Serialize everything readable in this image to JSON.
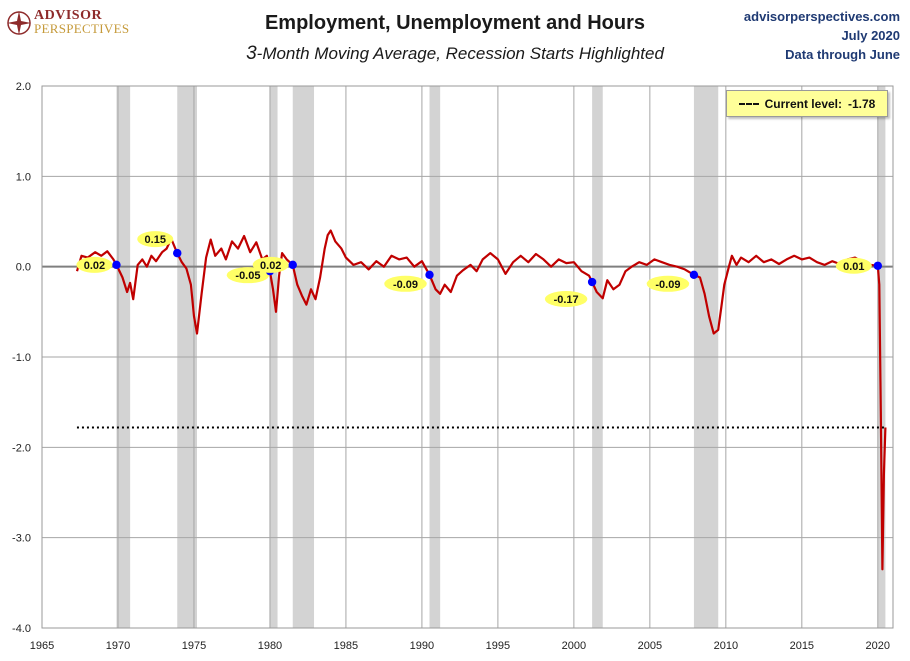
{
  "header": {
    "title": "Employment, Unemployment and Hours",
    "subtitle_lead": "3",
    "subtitle_rest": "-Month Moving Average, Recession Starts Highlighted",
    "source_site": "advisorperspectives.com",
    "source_date": "July 2020",
    "source_note": "Data through June",
    "logo_word1": "ADVISOR",
    "logo_word2": "PERSPECTIVES"
  },
  "legend": {
    "marker": "dashed-line",
    "label": "Current level:",
    "value": "-1.78"
  },
  "colors": {
    "series": "#c00000",
    "recession": "#d3d3d3",
    "marker": "#0000ff",
    "label_bg": "#ffff66",
    "grid": "#a6a6a6"
  },
  "chart_data": {
    "type": "line",
    "title": "Employment, Unemployment and Hours",
    "subtitle": "3-Month Moving Average, Recession Starts Highlighted",
    "xlim": [
      1965,
      2021
    ],
    "ylim": [
      -4.0,
      2.0
    ],
    "x_ticks": [
      1965,
      1970,
      1975,
      1980,
      1985,
      1990,
      1995,
      2000,
      2005,
      2010,
      2015,
      2020
    ],
    "y_ticks": [
      2.0,
      1.0,
      0.0,
      -1.0,
      -2.0,
      -3.0,
      -4.0
    ],
    "y_tick_labels": [
      "2.0",
      "1.0",
      "0.0",
      "-1.0",
      "-2.0",
      "-3.0",
      "-4.0"
    ],
    "grid": "vertical-and-horizontal",
    "legend_position": "top-right",
    "current_level": -1.78,
    "recessions": [
      [
        1969.9,
        1970.8
      ],
      [
        1973.9,
        1975.2
      ],
      [
        1980.0,
        1980.5
      ],
      [
        1981.5,
        1982.9
      ],
      [
        1990.5,
        1991.2
      ],
      [
        2001.2,
        2001.9
      ],
      [
        2007.9,
        2009.5
      ],
      [
        2020.0,
        2020.5
      ]
    ],
    "recession_start_values": [
      {
        "x": 1969.9,
        "y": 0.02,
        "label": "0.02"
      },
      {
        "x": 1973.9,
        "y": 0.15,
        "label": "0.15"
      },
      {
        "x": 1980.0,
        "y": -0.05,
        "label": "-0.05"
      },
      {
        "x": 1981.5,
        "y": 0.02,
        "label": "0.02"
      },
      {
        "x": 1990.5,
        "y": -0.09,
        "label": "-0.09"
      },
      {
        "x": 2001.2,
        "y": -0.17,
        "label": "-0.17"
      },
      {
        "x": 2007.9,
        "y": -0.09,
        "label": "-0.09"
      },
      {
        "x": 2020.0,
        "y": 0.01,
        "label": "0.01"
      }
    ],
    "series": [
      {
        "values": [
          [
            1967.3,
            -0.05
          ],
          [
            1967.6,
            0.12
          ],
          [
            1968.0,
            0.1
          ],
          [
            1968.5,
            0.16
          ],
          [
            1968.9,
            0.12
          ],
          [
            1969.3,
            0.17
          ],
          [
            1969.7,
            0.08
          ],
          [
            1969.9,
            0.02
          ],
          [
            1970.3,
            -0.12
          ],
          [
            1970.6,
            -0.28
          ],
          [
            1970.8,
            -0.18
          ],
          [
            1971.0,
            -0.36
          ],
          [
            1971.3,
            0.02
          ],
          [
            1971.6,
            0.08
          ],
          [
            1971.9,
            0.0
          ],
          [
            1972.2,
            0.12
          ],
          [
            1972.5,
            0.06
          ],
          [
            1972.9,
            0.16
          ],
          [
            1973.2,
            0.2
          ],
          [
            1973.5,
            0.31
          ],
          [
            1973.9,
            0.15
          ],
          [
            1974.2,
            0.05
          ],
          [
            1974.5,
            -0.02
          ],
          [
            1974.8,
            -0.2
          ],
          [
            1975.0,
            -0.55
          ],
          [
            1975.2,
            -0.74
          ],
          [
            1975.5,
            -0.3
          ],
          [
            1975.8,
            0.1
          ],
          [
            1976.1,
            0.3
          ],
          [
            1976.4,
            0.12
          ],
          [
            1976.8,
            0.2
          ],
          [
            1977.1,
            0.08
          ],
          [
            1977.5,
            0.28
          ],
          [
            1977.9,
            0.2
          ],
          [
            1978.3,
            0.34
          ],
          [
            1978.7,
            0.16
          ],
          [
            1979.1,
            0.27
          ],
          [
            1979.5,
            0.08
          ],
          [
            1979.8,
            0.12
          ],
          [
            1980.0,
            -0.05
          ],
          [
            1980.2,
            -0.25
          ],
          [
            1980.4,
            -0.5
          ],
          [
            1980.6,
            -0.1
          ],
          [
            1980.8,
            0.15
          ],
          [
            1981.1,
            0.08
          ],
          [
            1981.5,
            0.02
          ],
          [
            1981.8,
            -0.2
          ],
          [
            1982.1,
            -0.32
          ],
          [
            1982.4,
            -0.42
          ],
          [
            1982.7,
            -0.25
          ],
          [
            1983.0,
            -0.36
          ],
          [
            1983.3,
            -0.12
          ],
          [
            1983.6,
            0.2
          ],
          [
            1983.8,
            0.35
          ],
          [
            1984.0,
            0.4
          ],
          [
            1984.3,
            0.28
          ],
          [
            1984.7,
            0.2
          ],
          [
            1985.0,
            0.1
          ],
          [
            1985.5,
            0.02
          ],
          [
            1986.0,
            0.05
          ],
          [
            1986.5,
            -0.03
          ],
          [
            1987.0,
            0.06
          ],
          [
            1987.5,
            0.0
          ],
          [
            1988.0,
            0.12
          ],
          [
            1988.5,
            0.08
          ],
          [
            1989.0,
            0.1
          ],
          [
            1989.5,
            0.0
          ],
          [
            1990.0,
            0.06
          ],
          [
            1990.5,
            -0.09
          ],
          [
            1990.9,
            -0.25
          ],
          [
            1991.2,
            -0.3
          ],
          [
            1991.5,
            -0.2
          ],
          [
            1991.9,
            -0.28
          ],
          [
            1992.3,
            -0.1
          ],
          [
            1992.7,
            -0.04
          ],
          [
            1993.2,
            0.02
          ],
          [
            1993.6,
            -0.05
          ],
          [
            1994.0,
            0.08
          ],
          [
            1994.5,
            0.15
          ],
          [
            1995.0,
            0.08
          ],
          [
            1995.5,
            -0.08
          ],
          [
            1996.0,
            0.05
          ],
          [
            1996.5,
            0.12
          ],
          [
            1997.0,
            0.05
          ],
          [
            1997.5,
            0.14
          ],
          [
            1998.0,
            0.08
          ],
          [
            1998.5,
            0.0
          ],
          [
            1999.0,
            0.08
          ],
          [
            1999.5,
            0.04
          ],
          [
            2000.0,
            0.05
          ],
          [
            2000.5,
            -0.05
          ],
          [
            2001.0,
            -0.1
          ],
          [
            2001.2,
            -0.17
          ],
          [
            2001.5,
            -0.28
          ],
          [
            2001.9,
            -0.35
          ],
          [
            2002.2,
            -0.15
          ],
          [
            2002.6,
            -0.25
          ],
          [
            2003.0,
            -0.2
          ],
          [
            2003.4,
            -0.05
          ],
          [
            2003.8,
            0.0
          ],
          [
            2004.3,
            0.05
          ],
          [
            2004.8,
            0.02
          ],
          [
            2005.3,
            0.08
          ],
          [
            2005.8,
            0.05
          ],
          [
            2006.3,
            0.02
          ],
          [
            2006.8,
            0.0
          ],
          [
            2007.3,
            -0.03
          ],
          [
            2007.9,
            -0.09
          ],
          [
            2008.3,
            -0.12
          ],
          [
            2008.6,
            -0.3
          ],
          [
            2008.9,
            -0.55
          ],
          [
            2009.2,
            -0.74
          ],
          [
            2009.5,
            -0.7
          ],
          [
            2009.7,
            -0.45
          ],
          [
            2009.9,
            -0.2
          ],
          [
            2010.2,
            0.0
          ],
          [
            2010.4,
            0.12
          ],
          [
            2010.7,
            0.02
          ],
          [
            2011.0,
            0.1
          ],
          [
            2011.5,
            0.05
          ],
          [
            2012.0,
            0.12
          ],
          [
            2012.5,
            0.05
          ],
          [
            2013.0,
            0.08
          ],
          [
            2013.5,
            0.03
          ],
          [
            2014.0,
            0.08
          ],
          [
            2014.5,
            0.12
          ],
          [
            2015.0,
            0.08
          ],
          [
            2015.5,
            0.1
          ],
          [
            2016.0,
            0.05
          ],
          [
            2016.5,
            0.02
          ],
          [
            2017.0,
            0.06
          ],
          [
            2017.5,
            0.03
          ],
          [
            2018.0,
            0.08
          ],
          [
            2018.5,
            0.1
          ],
          [
            2019.0,
            0.05
          ],
          [
            2019.5,
            0.02
          ],
          [
            2020.0,
            0.01
          ],
          [
            2020.1,
            -0.2
          ],
          [
            2020.2,
            -1.6
          ],
          [
            2020.3,
            -3.35
          ],
          [
            2020.4,
            -2.3
          ],
          [
            2020.5,
            -1.78
          ]
        ]
      }
    ]
  }
}
